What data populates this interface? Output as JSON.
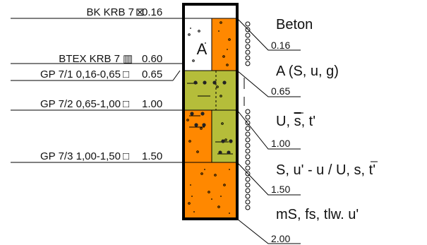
{
  "samples": [
    {
      "label": "BK KRB 7",
      "marker": "⊠",
      "depth": "0.16"
    },
    {
      "label": "BTEX KRB 7",
      "marker": "▥",
      "depth": "0.60"
    },
    {
      "label": "GP 7/1 0,16-0,65",
      "marker": "□",
      "depth": "0.65"
    },
    {
      "label": "GP 7/2 0,65-1,00",
      "marker": "□",
      "depth": "1.00"
    },
    {
      "label": "GP 7/3 1,00-1,50",
      "marker": "□",
      "depth": "1.50"
    }
  ],
  "layers": [
    {
      "description": "Beton",
      "bottom": "0.16",
      "color": "#ffffff"
    },
    {
      "description": "A (S, u, g)",
      "bottom": "0.65",
      "color": "#ff8800",
      "letter": "A"
    },
    {
      "description_parts": [
        "U, ",
        "s",
        ", t'"
      ],
      "bottom": "1.00",
      "color": "#b5bd3a"
    },
    {
      "description_parts": [
        "S, u' - u / U, ",
        "s",
        ", t'"
      ],
      "bottom": "1.50",
      "color": "#ff8800"
    },
    {
      "description": "mS, fs, tlw. u'",
      "bottom": "2.00",
      "color": "#ff8800"
    }
  ],
  "colors": {
    "sand": "#ff8800",
    "silt": "#b5bd3a",
    "frame": "#000000"
  }
}
